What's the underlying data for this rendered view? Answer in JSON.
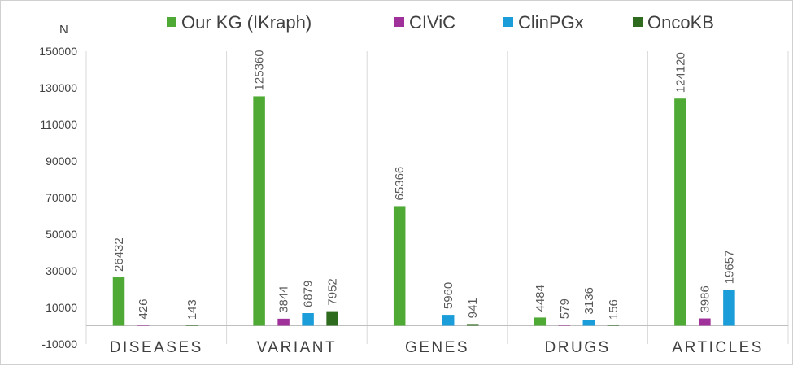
{
  "chart_data": {
    "type": "bar",
    "title": "",
    "xlabel": "",
    "ylabel": "N",
    "ylim": [
      -10000,
      150000
    ],
    "yticks": [
      -10000,
      10000,
      30000,
      50000,
      70000,
      90000,
      110000,
      130000,
      150000
    ],
    "ytick_labels": [
      "-10000",
      "10000",
      "30000",
      "50000",
      "70000",
      "90000",
      "110000",
      "130000",
      "150000"
    ],
    "categories": [
      "DISEASES",
      "VARIANT",
      "GENES",
      "DRUGS",
      "ARTICLES"
    ],
    "legend_position": "top",
    "series": [
      {
        "name": "Our KG (IKraph)",
        "color": "#4eaa34",
        "values": [
          26432,
          125360,
          65366,
          4484,
          124120
        ],
        "labels": [
          "26432",
          "125360",
          "65366",
          "4484",
          "124120"
        ]
      },
      {
        "name": "CIViC",
        "color": "#a0309a",
        "values": [
          426,
          3844,
          null,
          579,
          3986
        ],
        "labels": [
          "426",
          "3844",
          null,
          "579",
          "3986"
        ]
      },
      {
        "name": "ClinPGx",
        "color": "#1b9dd9",
        "values": [
          null,
          6879,
          5960,
          3136,
          19657
        ],
        "labels": [
          null,
          "6879",
          "5960",
          "3136",
          "19657"
        ]
      },
      {
        "name": "OncoKB",
        "color": "#2e6b1f",
        "values": [
          143,
          7952,
          941,
          156,
          null
        ],
        "labels": [
          "143",
          "7952",
          "941",
          "156",
          null
        ]
      }
    ]
  }
}
